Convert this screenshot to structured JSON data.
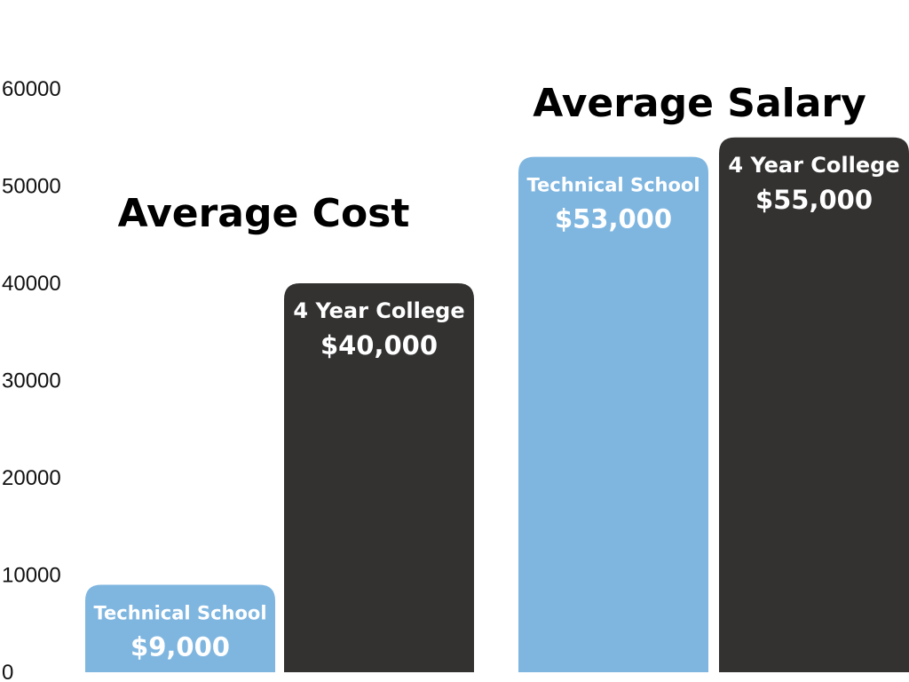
{
  "chart_data": {
    "type": "bar",
    "ylim": [
      0,
      60000
    ],
    "yticks": [
      "0",
      "10000",
      "20000",
      "30000",
      "40000",
      "50000",
      "60000"
    ],
    "grid": false,
    "legend": "none",
    "groups": [
      {
        "title": "Average Cost",
        "bars": [
          {
            "label": "Technical School",
            "value": 9000,
            "value_label": "$9,000",
            "color": "#7fb6e0"
          },
          {
            "label": "4 Year College",
            "value": 40000,
            "value_label": "$40,000",
            "color": "#333231"
          }
        ]
      },
      {
        "title": "Average Salary",
        "bars": [
          {
            "label": "Technical School",
            "value": 53000,
            "value_label": "$53,000",
            "color": "#7fb6e0"
          },
          {
            "label": "4 Year College",
            "value": 55000,
            "value_label": "$55,000",
            "color": "#333231"
          }
        ]
      }
    ]
  }
}
